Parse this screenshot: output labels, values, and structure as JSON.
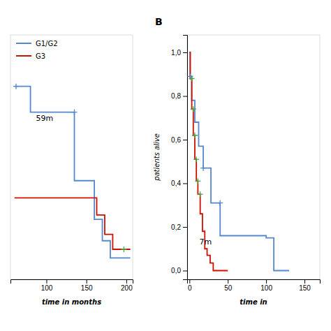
{
  "chart_data": [
    {
      "type": "line",
      "xlabel": "time in months",
      "xlim": [
        55,
        208
      ],
      "ylim": [
        0.05,
        0.62
      ],
      "xticks": [
        100,
        150,
        200
      ],
      "tick_labels": "x",
      "grid": false,
      "legend": "upper left",
      "series": [
        {
          "name": "G1/G2",
          "type": "step",
          "color": "#5588cc",
          "x": [
            60,
            80,
            80,
            135,
            135,
            160,
            160,
            170,
            170,
            180,
            180,
            205
          ],
          "values": [
            0.5,
            0.5,
            0.44,
            0.44,
            0.28,
            0.28,
            0.19,
            0.19,
            0.14,
            0.14,
            0.1,
            0.1
          ]
        },
        {
          "name": "G3",
          "type": "step",
          "color": "#cc1100",
          "x": [
            60,
            163,
            163,
            173,
            173,
            183,
            183,
            205
          ],
          "values": [
            0.24,
            0.24,
            0.2,
            0.2,
            0.155,
            0.155,
            0.12,
            0.12
          ]
        },
        {
          "type": "scatter",
          "marker": "plus",
          "color": "#5588cc",
          "x": [
            62,
            135
          ],
          "values": [
            0.5,
            0.44
          ]
        },
        {
          "type": "scatter",
          "marker": "plus",
          "color": "#44aa44",
          "x": [
            197
          ],
          "values": [
            0.12
          ]
        }
      ],
      "annotations": [
        {
          "text": "59m",
          "x": 87,
          "y": 0.42
        }
      ]
    },
    {
      "type": "line",
      "title": "B",
      "xlabel": "time in",
      "ylabel": "patients alive",
      "xlim": [
        -3,
        170
      ],
      "ylim": [
        -0.04,
        1.08
      ],
      "xticks": [
        0,
        50,
        100,
        150
      ],
      "yticks": [
        {
          "value": 0.0,
          "label": "0,0"
        },
        {
          "value": 0.2,
          "label": "0,2"
        },
        {
          "value": 0.4,
          "label": "0,4"
        },
        {
          "value": 0.6,
          "label": "0,6"
        },
        {
          "value": 0.8,
          "label": "0,8"
        },
        {
          "value": 1.0,
          "label": "1,0"
        }
      ],
      "grid": false,
      "series": [
        {
          "type": "step",
          "color": "#5588cc",
          "x": [
            0,
            1,
            1,
            3,
            3,
            7,
            7,
            12,
            12,
            18,
            18,
            28,
            28,
            40,
            40,
            100,
            100,
            110,
            110,
            130
          ],
          "values": [
            1.0,
            1.0,
            0.89,
            0.89,
            0.78,
            0.78,
            0.68,
            0.68,
            0.57,
            0.57,
            0.47,
            0.47,
            0.31,
            0.31,
            0.16,
            0.16,
            0.15,
            0.15,
            0.0,
            0.0
          ]
        },
        {
          "type": "step",
          "color": "#cc1100",
          "x": [
            0,
            1,
            1,
            3,
            3,
            5,
            5,
            7,
            7,
            9,
            9,
            11,
            11,
            14,
            14,
            17,
            17,
            20,
            20,
            23,
            23,
            27,
            27,
            31,
            31,
            50
          ],
          "values": [
            1.0,
            1.0,
            0.88,
            0.88,
            0.74,
            0.74,
            0.62,
            0.62,
            0.51,
            0.51,
            0.41,
            0.41,
            0.35,
            0.35,
            0.26,
            0.26,
            0.18,
            0.18,
            0.1,
            0.1,
            0.07,
            0.07,
            0.035,
            0.035,
            0.0,
            0.0
          ]
        },
        {
          "type": "scatter",
          "marker": "plus",
          "color": "#5588cc",
          "x": [
            1,
            18,
            40
          ],
          "values": [
            0.89,
            0.47,
            0.31
          ]
        },
        {
          "type": "scatter",
          "marker": "plus",
          "color": "#44aa44",
          "x": [
            3,
            5,
            7,
            9,
            11,
            14
          ],
          "values": [
            0.88,
            0.74,
            0.62,
            0.51,
            0.41,
            0.35
          ]
        }
      ],
      "annotations": [
        {
          "text": "7m",
          "x": 13,
          "y": 0.12
        }
      ]
    }
  ]
}
